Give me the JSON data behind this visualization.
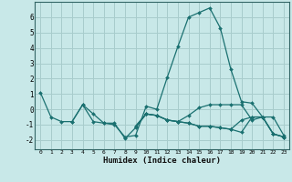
{
  "xlabel": "Humidex (Indice chaleur)",
  "xlim": [
    -0.5,
    23.5
  ],
  "ylim": [
    -2.6,
    7.0
  ],
  "yticks": [
    -2,
    -1,
    0,
    1,
    2,
    3,
    4,
    5,
    6
  ],
  "xticks": [
    0,
    1,
    2,
    3,
    4,
    5,
    6,
    7,
    8,
    9,
    10,
    11,
    12,
    13,
    14,
    15,
    16,
    17,
    18,
    19,
    20,
    21,
    22,
    23
  ],
  "background_color": "#c8e8e8",
  "grid_color": "#a8cccc",
  "line_color": "#1a7070",
  "lines": [
    [
      1.1,
      -0.5,
      -0.8,
      -0.8,
      0.3,
      -0.3,
      -0.9,
      -1.0,
      -1.8,
      -1.7,
      0.2,
      0.0,
      2.1,
      4.1,
      6.0,
      6.3,
      6.6,
      5.3,
      2.6,
      0.5,
      0.4,
      -0.5,
      -0.5,
      -1.7
    ],
    [
      null,
      null,
      null,
      -0.8,
      0.3,
      -0.8,
      -0.9,
      -0.9,
      -1.9,
      -1.2,
      -0.3,
      -0.4,
      -0.7,
      -0.8,
      -0.9,
      -1.1,
      -1.1,
      -1.2,
      -1.3,
      -1.5,
      -0.5,
      -0.5,
      -1.6,
      -1.8
    ],
    [
      null,
      null,
      null,
      null,
      null,
      null,
      null,
      null,
      null,
      -1.1,
      -0.3,
      -0.4,
      -0.7,
      -0.8,
      -0.9,
      -1.1,
      -1.1,
      -1.2,
      -1.3,
      -0.7,
      -0.5,
      -0.5,
      -1.6,
      -1.8
    ],
    [
      null,
      null,
      null,
      null,
      null,
      null,
      null,
      null,
      null,
      -1.1,
      -0.3,
      -0.4,
      -0.7,
      -0.8,
      -0.4,
      0.1,
      0.3,
      0.3,
      0.3,
      0.3,
      -0.7,
      -0.5,
      -1.6,
      -1.8
    ]
  ]
}
